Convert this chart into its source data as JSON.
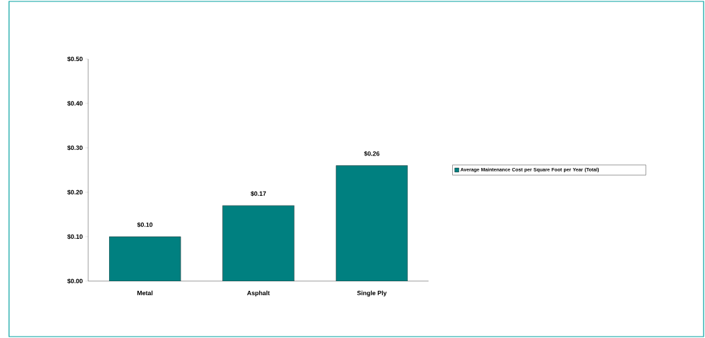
{
  "chart_data": {
    "type": "bar",
    "categories": [
      "Metal",
      "Asphalt",
      "Single Ply"
    ],
    "series": [
      {
        "name": "Average Maintenance Cost per Square Foot per Year (Total)",
        "color": "#008080",
        "values": [
          0.1,
          0.17,
          0.26
        ],
        "value_labels": [
          "$0.10",
          "$0.17",
          "$0.26"
        ]
      }
    ],
    "ylim": [
      0,
      0.5
    ],
    "yticks": [
      {
        "value": 0,
        "label": "$0.00"
      },
      {
        "value": 0.1,
        "label": "$0.10"
      },
      {
        "value": 0.2,
        "label": "$0.20"
      },
      {
        "value": 0.3,
        "label": "$0.30"
      },
      {
        "value": 0.4,
        "label": "$0.40"
      },
      {
        "value": 0.5,
        "label": "$0.50"
      }
    ],
    "grid": false,
    "legend": "right"
  }
}
